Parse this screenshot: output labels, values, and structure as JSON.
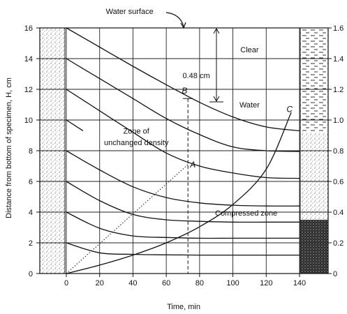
{
  "chart_data": {
    "type": "line",
    "xlabel": "Time, min",
    "ylabel": "Distance from bottom of specimen, H, cm",
    "xlim": [
      -15,
      145
    ],
    "ylim": [
      0,
      16
    ],
    "xticks": [
      0,
      20,
      40,
      60,
      80,
      100,
      120,
      140
    ],
    "yticks": [
      0,
      2,
      4,
      6,
      8,
      10,
      12,
      14,
      16
    ],
    "right_ticks": [
      "0",
      "0.2",
      "0.4",
      "0.6",
      "0.8",
      "1.0",
      "1.2",
      "1.4",
      "1.6"
    ],
    "grid": true,
    "series": [
      {
        "points": [
          [
            0,
            16
          ],
          [
            20,
            14.75
          ],
          [
            40,
            13.5
          ],
          [
            60,
            12.3
          ],
          [
            80,
            11.15
          ],
          [
            100,
            10.2
          ],
          [
            120,
            9.55
          ],
          [
            140,
            9.3
          ]
        ]
      },
      {
        "points": [
          [
            0,
            14
          ],
          [
            20,
            12.7
          ],
          [
            40,
            11.4
          ],
          [
            60,
            10.1
          ],
          [
            80,
            9.05
          ],
          [
            100,
            8.25
          ],
          [
            120,
            8.0
          ],
          [
            140,
            7.95
          ]
        ]
      },
      {
        "points": [
          [
            0,
            12
          ],
          [
            20,
            10.6
          ],
          [
            40,
            9.2
          ],
          [
            60,
            7.85
          ],
          [
            80,
            7.0
          ],
          [
            100,
            6.55
          ],
          [
            120,
            6.25
          ],
          [
            140,
            6.2
          ]
        ]
      },
      {
        "points": [
          [
            0,
            10
          ],
          [
            10,
            9.3
          ]
        ]
      },
      {
        "points": [
          [
            0,
            8
          ],
          [
            20,
            6.75
          ],
          [
            40,
            5.65
          ],
          [
            60,
            4.95
          ],
          [
            80,
            4.6
          ],
          [
            100,
            4.45
          ],
          [
            120,
            4.4
          ],
          [
            140,
            4.4
          ]
        ]
      },
      {
        "points": [
          [
            0,
            6
          ],
          [
            20,
            4.75
          ],
          [
            40,
            3.85
          ],
          [
            60,
            3.5
          ],
          [
            80,
            3.4
          ],
          [
            100,
            3.35
          ],
          [
            120,
            3.35
          ],
          [
            140,
            3.35
          ]
        ]
      },
      {
        "points": [
          [
            0,
            4
          ],
          [
            20,
            2.95
          ],
          [
            40,
            2.45
          ],
          [
            60,
            2.35
          ],
          [
            80,
            2.3
          ],
          [
            100,
            2.3
          ],
          [
            120,
            2.3
          ],
          [
            140,
            2.3
          ]
        ]
      },
      {
        "points": [
          [
            0,
            2
          ],
          [
            20,
            1.35
          ],
          [
            40,
            1.25
          ],
          [
            60,
            1.22
          ],
          [
            80,
            1.2
          ],
          [
            100,
            1.2
          ],
          [
            120,
            1.2
          ],
          [
            140,
            1.2
          ]
        ]
      },
      {
        "points": [
          [
            0,
            0
          ],
          [
            20,
            0.55
          ],
          [
            40,
            1.2
          ],
          [
            60,
            2.0
          ],
          [
            80,
            3.05
          ],
          [
            100,
            4.5
          ],
          [
            120,
            6.8
          ],
          [
            135,
            10.5
          ]
        ]
      }
    ],
    "construction_lines": [
      {
        "style": "dashed",
        "points": [
          [
            73,
            11.4
          ],
          [
            73,
            0
          ]
        ]
      },
      {
        "style": "dotted",
        "points": [
          [
            0,
            0
          ],
          [
            73,
            7.1
          ]
        ]
      }
    ],
    "annotations": [
      {
        "text": "Water surface",
        "x": 38,
        "y": 17.1
      },
      {
        "text": "Clear",
        "x": 110,
        "y": 14.6
      },
      {
        "text": "Water",
        "x": 110,
        "y": 11.0
      },
      {
        "text": "0.48 cm",
        "x": 78,
        "y": 12.9
      },
      {
        "text": "Zone of",
        "x": 42,
        "y": 9.3
      },
      {
        "text": "unchanged density",
        "x": 42,
        "y": 8.55
      },
      {
        "text": "Compressed zone",
        "x": 108,
        "y": 3.95
      },
      {
        "text": "A",
        "x": 76,
        "y": 7.1
      },
      {
        "text": "B",
        "x": 71,
        "y": 11.9
      },
      {
        "text": "C",
        "x": 134,
        "y": 10.7
      }
    ]
  }
}
